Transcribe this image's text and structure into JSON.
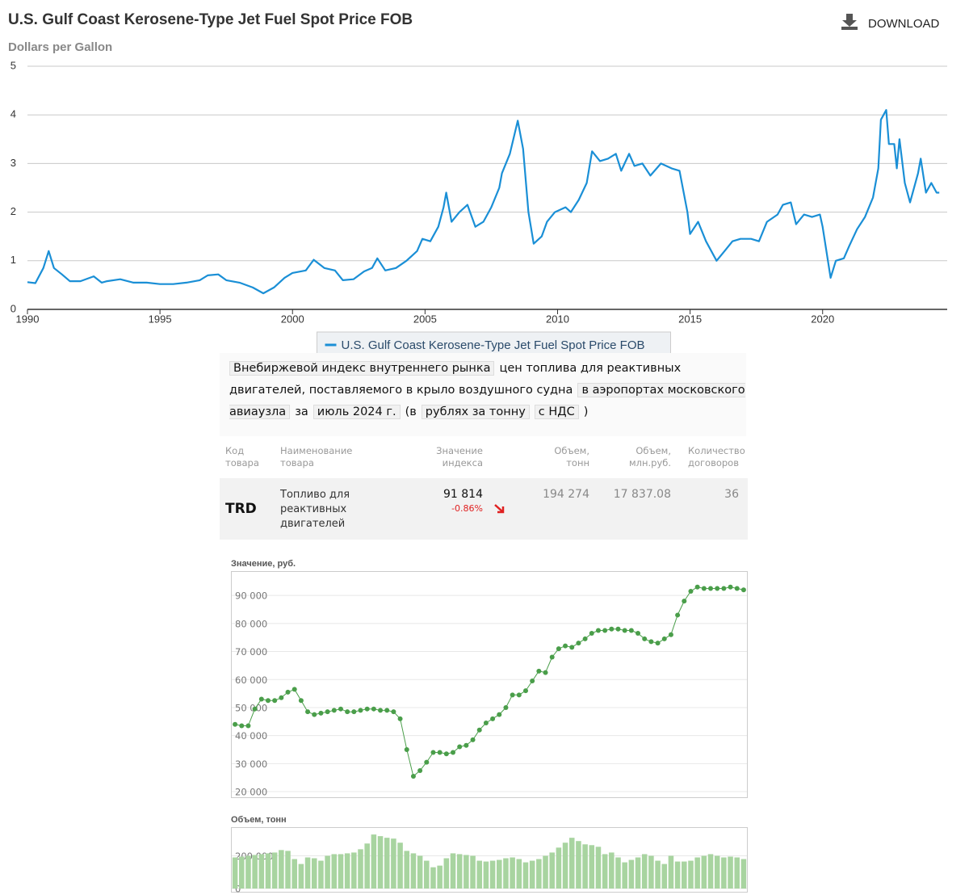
{
  "toolbar": {
    "download": "DOWNLOAD"
  },
  "chart_data": [
    {
      "type": "line",
      "title": "U.S. Gulf Coast Kerosene-Type Jet Fuel Spot Price FOB",
      "y_label": "Dollars per Gallon",
      "grid": true,
      "legend": "bottom",
      "xlim": [
        1990,
        2024.7
      ],
      "xticks": [
        1990,
        1995,
        2000,
        2005,
        2010,
        2015,
        2020
      ],
      "ylim": [
        0,
        5
      ],
      "yticks": [
        0,
        1,
        2,
        3,
        4,
        5
      ],
      "x": [
        1990.0,
        1990.3,
        1990.6,
        1990.8,
        1991.0,
        1991.3,
        1991.6,
        1992.0,
        1992.5,
        1992.8,
        1993.0,
        1993.5,
        1994.0,
        1994.5,
        1995.0,
        1995.5,
        1996.0,
        1996.5,
        1996.8,
        1997.2,
        1997.5,
        1998.0,
        1998.5,
        1998.9,
        1999.3,
        1999.7,
        2000.0,
        2000.5,
        2000.8,
        2001.2,
        2001.6,
        2001.9,
        2002.3,
        2002.7,
        2003.0,
        2003.2,
        2003.5,
        2003.9,
        2004.3,
        2004.7,
        2004.9,
        2005.2,
        2005.5,
        2005.7,
        2005.8,
        2006.0,
        2006.3,
        2006.6,
        2006.9,
        2007.2,
        2007.5,
        2007.8,
        2007.9,
        2008.2,
        2008.5,
        2008.7,
        2008.9,
        2009.1,
        2009.4,
        2009.6,
        2009.9,
        2010.3,
        2010.5,
        2010.8,
        2011.1,
        2011.3,
        2011.6,
        2011.9,
        2012.2,
        2012.4,
        2012.7,
        2012.9,
        2013.2,
        2013.5,
        2013.9,
        2014.3,
        2014.6,
        2014.9,
        2015.0,
        2015.3,
        2015.6,
        2016.0,
        2016.3,
        2016.6,
        2016.9,
        2017.3,
        2017.6,
        2017.9,
        2018.3,
        2018.5,
        2018.8,
        2019.0,
        2019.3,
        2019.6,
        2019.9,
        2020.0,
        2020.3,
        2020.5,
        2020.8,
        2021.0,
        2021.3,
        2021.6,
        2021.9,
        2022.1,
        2022.2,
        2022.4,
        2022.5,
        2022.7,
        2022.8,
        2022.9,
        2023.1,
        2023.3,
        2023.6,
        2023.7,
        2023.9,
        2024.1,
        2024.3,
        2024.4
      ],
      "series": [
        {
          "name": "U.S. Gulf Coast Kerosene-Type Jet Fuel Spot Price FOB",
          "color": "#1a8fd6",
          "values": [
            0.56,
            0.54,
            0.85,
            1.2,
            0.85,
            0.72,
            0.58,
            0.58,
            0.68,
            0.55,
            0.58,
            0.62,
            0.55,
            0.55,
            0.52,
            0.52,
            0.55,
            0.6,
            0.7,
            0.72,
            0.6,
            0.55,
            0.45,
            0.33,
            0.45,
            0.65,
            0.75,
            0.8,
            1.02,
            0.85,
            0.8,
            0.6,
            0.62,
            0.78,
            0.85,
            1.05,
            0.8,
            0.85,
            1.0,
            1.2,
            1.45,
            1.4,
            1.7,
            2.1,
            2.4,
            1.8,
            2.0,
            2.15,
            1.7,
            1.8,
            2.1,
            2.5,
            2.8,
            3.2,
            3.88,
            3.3,
            2.0,
            1.35,
            1.5,
            1.8,
            2.0,
            2.1,
            2.0,
            2.25,
            2.6,
            3.25,
            3.05,
            3.1,
            3.2,
            2.85,
            3.2,
            2.95,
            3.0,
            2.75,
            3.0,
            2.9,
            2.85,
            2.0,
            1.55,
            1.8,
            1.4,
            1.0,
            1.2,
            1.4,
            1.45,
            1.45,
            1.4,
            1.8,
            1.95,
            2.15,
            2.2,
            1.75,
            1.95,
            1.9,
            1.95,
            1.7,
            0.65,
            1.0,
            1.05,
            1.3,
            1.65,
            1.9,
            2.3,
            2.9,
            3.9,
            4.1,
            3.4,
            3.4,
            2.9,
            3.5,
            2.6,
            2.2,
            2.8,
            3.1,
            2.4,
            2.6,
            2.4,
            2.4
          ]
        }
      ]
    },
    {
      "type": "line",
      "title": "Значение, руб.",
      "markers": true,
      "grid": true,
      "color": "#4a9e4a",
      "ylim": [
        18000,
        98400
      ],
      "yticks": [
        {
          "value": 20000,
          "label": "20 000"
        },
        {
          "value": 30000,
          "label": "30 000"
        },
        {
          "value": 40000,
          "label": "40 000"
        },
        {
          "value": 50000,
          "label": "50 000"
        },
        {
          "value": 60000,
          "label": "60 000"
        },
        {
          "value": 70000,
          "label": "70 000"
        },
        {
          "value": 80000,
          "label": "80 000"
        },
        {
          "value": 90000,
          "label": "90 000"
        }
      ],
      "categories": [
        null,
        null,
        null,
        null,
        null,
        null,
        null,
        null,
        null,
        null,
        null,
        null,
        null,
        null,
        null,
        null,
        null,
        null,
        null,
        null,
        null,
        null,
        null,
        null,
        null,
        null,
        null,
        null,
        null,
        null,
        null,
        null,
        null,
        null,
        null,
        null,
        null,
        null,
        null,
        null,
        null,
        null,
        null,
        null,
        null,
        null,
        null,
        null,
        null,
        null,
        null,
        null,
        null,
        null,
        null,
        null,
        null,
        null,
        null,
        null,
        null,
        null,
        null,
        null,
        null,
        null,
        null,
        null,
        null,
        null,
        null,
        null,
        null,
        null,
        null,
        null,
        null,
        null
      ],
      "values": [
        44000,
        43500,
        43500,
        49500,
        53000,
        52500,
        52500,
        53500,
        55500,
        56500,
        52500,
        48500,
        47500,
        48000,
        48500,
        49000,
        49500,
        48500,
        48500,
        49000,
        49500,
        49500,
        49000,
        49000,
        48500,
        46000,
        35000,
        25500,
        27500,
        30500,
        34000,
        34000,
        33500,
        34000,
        36000,
        36500,
        38500,
        42000,
        44500,
        46000,
        47500,
        50000,
        54500,
        54500,
        56000,
        59500,
        63000,
        62500,
        68000,
        71000,
        72000,
        71500,
        73000,
        74500,
        76500,
        77500,
        77500,
        78000,
        78000,
        77500,
        77500,
        76500,
        74500,
        73500,
        73000,
        74500,
        76000,
        83000,
        88000,
        91500,
        93000,
        92500,
        92500,
        92500,
        92500,
        93000,
        92500,
        92000
      ]
    },
    {
      "type": "bar",
      "title": "Объем, тонн",
      "grid": true,
      "color": "#a8d4a0",
      "ylim": [
        0,
        370000
      ],
      "yticks": [
        0,
        {
          "value": 200000,
          "label": "200 000"
        }
      ],
      "categories": [
        null,
        null,
        null,
        null,
        null,
        null,
        null,
        null,
        null,
        null,
        null,
        null,
        null,
        null,
        null,
        null,
        null,
        null,
        null,
        null,
        null,
        null,
        null,
        null,
        null,
        null,
        null,
        null,
        null,
        null,
        null,
        null,
        null,
        null,
        null,
        null,
        null,
        null,
        null,
        null,
        null,
        null,
        null,
        null,
        null,
        null,
        null,
        null,
        null,
        null,
        null,
        null,
        null,
        null,
        null,
        null,
        null,
        null,
        null,
        null,
        null,
        null,
        null,
        null,
        null,
        null,
        null,
        null,
        null,
        null,
        null,
        null,
        null,
        null,
        null,
        null,
        null,
        null
      ],
      "values": [
        190000,
        195000,
        200000,
        205000,
        210000,
        215000,
        220000,
        235000,
        230000,
        180000,
        150000,
        190000,
        185000,
        170000,
        200000,
        210000,
        210000,
        215000,
        220000,
        240000,
        275000,
        330000,
        320000,
        310000,
        305000,
        280000,
        230000,
        215000,
        200000,
        170000,
        130000,
        140000,
        185000,
        215000,
        210000,
        205000,
        200000,
        170000,
        165000,
        170000,
        175000,
        185000,
        190000,
        180000,
        160000,
        170000,
        180000,
        200000,
        220000,
        250000,
        280000,
        310000,
        290000,
        270000,
        265000,
        255000,
        210000,
        220000,
        190000,
        160000,
        175000,
        190000,
        210000,
        200000,
        170000,
        150000,
        200000,
        165000,
        165000,
        170000,
        190000,
        200000,
        210000,
        200000,
        190000,
        195000,
        190000,
        180000
      ]
    }
  ],
  "index_title": [
    {
      "text": "Внебиржевой индекс внутреннего рынка",
      "boxed": true
    },
    {
      "text": "цен топлива для реактивных двигателей, поставляемого в крыло воздушного судна",
      "boxed": false
    },
    {
      "text": "в аэропортах московского авиаузла",
      "boxed": true
    },
    {
      "text": "за",
      "boxed": false
    },
    {
      "text": "июль 2024 г.",
      "boxed": true
    },
    {
      "text": "(в",
      "boxed": false
    },
    {
      "text": "рублях за тонну",
      "boxed": true
    },
    {
      "text": "с НДС",
      "boxed": true
    },
    {
      "text": ")",
      "boxed": false
    }
  ],
  "table": {
    "headers": [
      "Код товара",
      "Наименование товара",
      "Значение индекса",
      "Объем, тонн",
      "Объем, млн.руб.",
      "Количество договоров"
    ],
    "rows": [
      {
        "code": "TRD",
        "name": "Топливо для реактивных двигателей",
        "index": "91 814",
        "change": "-0.86%",
        "volume_t": "194 274",
        "volume_rub": "17 837.08",
        "contracts": "36"
      }
    ]
  }
}
